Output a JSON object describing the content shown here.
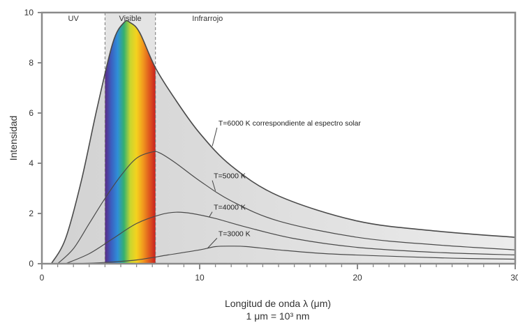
{
  "chart_data": {
    "type": "line",
    "title": "",
    "xlabel": "Longitud de onda λ (μm)",
    "xlabel_sub": "1 μm = 10³ nm",
    "ylabel": "Intensidad",
    "xlim": [
      0,
      30
    ],
    "ylim": [
      0,
      10
    ],
    "x_ticks": [
      0,
      10,
      20,
      30
    ],
    "x_tick_labels": [
      "0",
      "10",
      "20",
      "30"
    ],
    "y_ticks": [
      0,
      2,
      4,
      6,
      8,
      10
    ],
    "y_tick_labels": [
      "0",
      "2",
      "4",
      "6",
      "8",
      "10"
    ],
    "grid": false,
    "regions": [
      {
        "label": "UV",
        "x_label_at": 2
      },
      {
        "label": "Visible",
        "from": 4,
        "to": 7.2,
        "x_label_at": 5.6
      },
      {
        "label": "Infrarrojo",
        "x_label_at": 10.5
      }
    ],
    "series": [
      {
        "name": "T=6000 K correspondiente al espectro solar",
        "x": [
          0.6,
          1.5,
          2.5,
          3.5,
          4.5,
          5.2,
          5.6,
          6.2,
          7.2,
          8.5,
          10,
          12,
          15,
          20,
          25,
          30
        ],
        "values": [
          0,
          1.0,
          3.3,
          6.2,
          8.8,
          9.6,
          9.6,
          9.2,
          7.8,
          6.5,
          5.2,
          3.9,
          2.7,
          1.7,
          1.3,
          1.05
        ]
      },
      {
        "name": "T=5000 K",
        "x": [
          1.0,
          2.0,
          3.0,
          4.0,
          5.0,
          6.0,
          7.0,
          7.5,
          8.5,
          10,
          12,
          15,
          20,
          25,
          30
        ],
        "values": [
          0,
          0.6,
          1.6,
          2.6,
          3.5,
          4.2,
          4.45,
          4.4,
          4.0,
          3.3,
          2.5,
          1.7,
          1.05,
          0.75,
          0.55
        ]
      },
      {
        "name": "T=4000 K",
        "x": [
          1.5,
          3.0,
          4.5,
          6.0,
          7.5,
          8.5,
          9.5,
          11,
          13,
          16,
          20,
          25,
          30
        ],
        "values": [
          0,
          0.4,
          1.0,
          1.6,
          1.95,
          2.05,
          2.0,
          1.8,
          1.45,
          1.0,
          0.65,
          0.45,
          0.35
        ]
      },
      {
        "name": "T=3000 K",
        "x": [
          2.0,
          4.0,
          6.0,
          8.0,
          10,
          11,
          12,
          13,
          15,
          18,
          22,
          26,
          30
        ],
        "values": [
          0,
          0.05,
          0.15,
          0.35,
          0.55,
          0.68,
          0.7,
          0.68,
          0.55,
          0.4,
          0.3,
          0.22,
          0.18
        ]
      }
    ],
    "annotations": [
      {
        "text": "T=6000 K correspondiente al espectro solar",
        "series": 0,
        "at_x": 10.8,
        "label_x": 11.1,
        "label_y": 5.5
      },
      {
        "text": "T=5000 K",
        "series": 1,
        "at_x": 11.0,
        "label_x": 10.8,
        "label_y": 3.4
      },
      {
        "text": "T=4000 K",
        "series": 2,
        "at_x": 10.6,
        "label_x": 10.8,
        "label_y": 2.15
      },
      {
        "text": "T=3000 K",
        "series": 3,
        "at_x": 10.5,
        "label_x": 11.1,
        "label_y": 1.1
      }
    ],
    "colors": {
      "curve": "#4a4a4a",
      "fill_light": "#ececec",
      "fill_dark": "#d2d2d2",
      "axis": "#8a8a8a",
      "spectrum": [
        "#5b2a86",
        "#3b5fc0",
        "#2f8fd8",
        "#34b070",
        "#c8d630",
        "#f4d21e",
        "#f29a1e",
        "#e05a1e",
        "#c8201e"
      ]
    }
  }
}
